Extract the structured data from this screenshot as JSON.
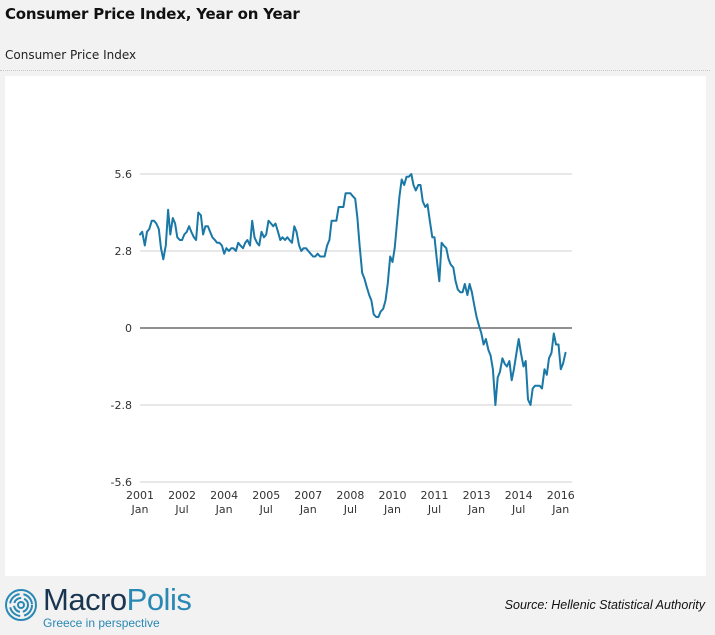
{
  "header": {
    "title": "Consumer Price Index, Year on Year",
    "subtitle": "Consumer Price Index"
  },
  "footer": {
    "brand_main": "Macro",
    "brand_accent": "Polis",
    "tagline": "Greece in perspective",
    "source": "Source: Hellenic Statistical Authority"
  },
  "colors": {
    "series": "#1a78a6",
    "gridline": "#d0d0d0",
    "zero_line": "#222222",
    "brand_dark": "#1a3550",
    "brand_accent": "#2a88b4"
  },
  "chart_data": {
    "type": "line",
    "title": "Consumer Price Index, Year on Year",
    "xlabel": "",
    "ylabel": "",
    "ylim": [
      -5.6,
      5.6
    ],
    "yticks": [
      5.6,
      2.8,
      0,
      -2.8,
      -5.6
    ],
    "ytick_labels": [
      "5.6",
      "2.8",
      "0",
      "-2.8",
      "-5.6"
    ],
    "xlim": [
      2001.0,
      2016.4
    ],
    "xticks": [
      {
        "x": 2001.0,
        "line1": "2001",
        "line2": "Jan"
      },
      {
        "x": 2002.5,
        "line1": "2002",
        "line2": "Jul"
      },
      {
        "x": 2004.0,
        "line1": "2004",
        "line2": "Jan"
      },
      {
        "x": 2005.5,
        "line1": "2005",
        "line2": "Jul"
      },
      {
        "x": 2007.0,
        "line1": "2007",
        "line2": "Jan"
      },
      {
        "x": 2008.5,
        "line1": "2008",
        "line2": "Jul"
      },
      {
        "x": 2010.0,
        "line1": "2010",
        "line2": "Jan"
      },
      {
        "x": 2011.5,
        "line1": "2011",
        "line2": "Jul"
      },
      {
        "x": 2013.0,
        "line1": "2013",
        "line2": "Jan"
      },
      {
        "x": 2014.5,
        "line1": "2014",
        "line2": "Jul"
      },
      {
        "x": 2016.0,
        "line1": "2016",
        "line2": "Jan"
      }
    ],
    "grid": true,
    "series": [
      {
        "name": "Consumer Price Index (YoY %)",
        "points": [
          [
            2001.0,
            3.4
          ],
          [
            2001.08,
            3.5
          ],
          [
            2001.17,
            3.0
          ],
          [
            2001.25,
            3.5
          ],
          [
            2001.33,
            3.6
          ],
          [
            2001.42,
            3.9
          ],
          [
            2001.5,
            3.9
          ],
          [
            2001.58,
            3.8
          ],
          [
            2001.67,
            3.6
          ],
          [
            2001.75,
            2.9
          ],
          [
            2001.83,
            2.5
          ],
          [
            2001.92,
            3.0
          ],
          [
            2002.0,
            4.3
          ],
          [
            2002.08,
            3.4
          ],
          [
            2002.17,
            4.0
          ],
          [
            2002.25,
            3.8
          ],
          [
            2002.33,
            3.3
          ],
          [
            2002.42,
            3.2
          ],
          [
            2002.5,
            3.2
          ],
          [
            2002.58,
            3.4
          ],
          [
            2002.67,
            3.5
          ],
          [
            2002.75,
            3.7
          ],
          [
            2002.83,
            3.5
          ],
          [
            2002.92,
            3.3
          ],
          [
            2003.0,
            3.2
          ],
          [
            2003.08,
            4.2
          ],
          [
            2003.17,
            4.1
          ],
          [
            2003.25,
            3.4
          ],
          [
            2003.33,
            3.7
          ],
          [
            2003.42,
            3.7
          ],
          [
            2003.5,
            3.5
          ],
          [
            2003.58,
            3.3
          ],
          [
            2003.67,
            3.2
          ],
          [
            2003.75,
            3.1
          ],
          [
            2003.83,
            3.1
          ],
          [
            2003.92,
            3.0
          ],
          [
            2004.0,
            2.7
          ],
          [
            2004.08,
            2.9
          ],
          [
            2004.17,
            2.8
          ],
          [
            2004.25,
            2.9
          ],
          [
            2004.33,
            2.9
          ],
          [
            2004.42,
            2.8
          ],
          [
            2004.5,
            3.1
          ],
          [
            2004.58,
            3.0
          ],
          [
            2004.67,
            2.9
          ],
          [
            2004.75,
            3.1
          ],
          [
            2004.83,
            3.2
          ],
          [
            2004.92,
            3.0
          ],
          [
            2005.0,
            3.9
          ],
          [
            2005.08,
            3.3
          ],
          [
            2005.17,
            3.1
          ],
          [
            2005.25,
            3.0
          ],
          [
            2005.33,
            3.5
          ],
          [
            2005.42,
            3.3
          ],
          [
            2005.5,
            3.4
          ],
          [
            2005.58,
            3.9
          ],
          [
            2005.67,
            3.8
          ],
          [
            2005.75,
            3.7
          ],
          [
            2005.83,
            3.8
          ],
          [
            2005.92,
            3.5
          ],
          [
            2006.0,
            3.2
          ],
          [
            2006.08,
            3.3
          ],
          [
            2006.17,
            3.2
          ],
          [
            2006.25,
            3.3
          ],
          [
            2006.33,
            3.2
          ],
          [
            2006.42,
            3.1
          ],
          [
            2006.5,
            3.7
          ],
          [
            2006.58,
            3.5
          ],
          [
            2006.67,
            3.0
          ],
          [
            2006.75,
            2.8
          ],
          [
            2006.83,
            2.9
          ],
          [
            2006.92,
            2.9
          ],
          [
            2007.0,
            2.8
          ],
          [
            2007.08,
            2.7
          ],
          [
            2007.17,
            2.6
          ],
          [
            2007.25,
            2.6
          ],
          [
            2007.33,
            2.7
          ],
          [
            2007.42,
            2.6
          ],
          [
            2007.5,
            2.6
          ],
          [
            2007.58,
            2.6
          ],
          [
            2007.67,
            3.0
          ],
          [
            2007.75,
            3.2
          ],
          [
            2007.83,
            3.9
          ],
          [
            2007.92,
            3.9
          ],
          [
            2008.0,
            3.9
          ],
          [
            2008.08,
            4.4
          ],
          [
            2008.17,
            4.4
          ],
          [
            2008.25,
            4.4
          ],
          [
            2008.33,
            4.9
          ],
          [
            2008.42,
            4.9
          ],
          [
            2008.5,
            4.9
          ],
          [
            2008.58,
            4.8
          ],
          [
            2008.67,
            4.7
          ],
          [
            2008.75,
            4.0
          ],
          [
            2008.83,
            3.0
          ],
          [
            2008.92,
            2.0
          ],
          [
            2009.0,
            1.8
          ],
          [
            2009.08,
            1.5
          ],
          [
            2009.17,
            1.2
          ],
          [
            2009.25,
            1.0
          ],
          [
            2009.33,
            0.5
          ],
          [
            2009.42,
            0.4
          ],
          [
            2009.5,
            0.4
          ],
          [
            2009.58,
            0.6
          ],
          [
            2009.67,
            0.7
          ],
          [
            2009.75,
            1.0
          ],
          [
            2009.83,
            1.6
          ],
          [
            2009.92,
            2.6
          ],
          [
            2010.0,
            2.4
          ],
          [
            2010.08,
            2.9
          ],
          [
            2010.17,
            3.9
          ],
          [
            2010.25,
            4.8
          ],
          [
            2010.33,
            5.4
          ],
          [
            2010.42,
            5.2
          ],
          [
            2010.5,
            5.5
          ],
          [
            2010.58,
            5.5
          ],
          [
            2010.67,
            5.6
          ],
          [
            2010.75,
            5.2
          ],
          [
            2010.83,
            5.0
          ],
          [
            2010.92,
            5.2
          ],
          [
            2011.0,
            5.2
          ],
          [
            2011.08,
            4.6
          ],
          [
            2011.17,
            4.4
          ],
          [
            2011.25,
            4.5
          ],
          [
            2011.33,
            3.9
          ],
          [
            2011.42,
            3.3
          ],
          [
            2011.5,
            3.3
          ],
          [
            2011.58,
            2.5
          ],
          [
            2011.67,
            1.7
          ],
          [
            2011.75,
            3.1
          ],
          [
            2011.83,
            3.0
          ],
          [
            2011.92,
            2.9
          ],
          [
            2012.0,
            2.5
          ],
          [
            2012.08,
            2.3
          ],
          [
            2012.17,
            2.2
          ],
          [
            2012.25,
            1.7
          ],
          [
            2012.33,
            1.4
          ],
          [
            2012.42,
            1.3
          ],
          [
            2012.5,
            1.3
          ],
          [
            2012.58,
            1.6
          ],
          [
            2012.67,
            1.2
          ],
          [
            2012.75,
            1.6
          ],
          [
            2012.83,
            1.3
          ],
          [
            2012.92,
            0.8
          ],
          [
            2013.0,
            0.4
          ],
          [
            2013.08,
            0.1
          ],
          [
            2013.17,
            -0.2
          ],
          [
            2013.25,
            -0.6
          ],
          [
            2013.33,
            -0.4
          ],
          [
            2013.42,
            -0.8
          ],
          [
            2013.5,
            -1.0
          ],
          [
            2013.58,
            -1.5
          ],
          [
            2013.67,
            -2.8
          ],
          [
            2013.75,
            -1.8
          ],
          [
            2013.83,
            -1.6
          ],
          [
            2013.92,
            -1.1
          ],
          [
            2014.0,
            -1.3
          ],
          [
            2014.08,
            -1.4
          ],
          [
            2014.17,
            -1.2
          ],
          [
            2014.25,
            -1.9
          ],
          [
            2014.33,
            -1.5
          ],
          [
            2014.42,
            -0.9
          ],
          [
            2014.5,
            -0.4
          ],
          [
            2014.58,
            -0.9
          ],
          [
            2014.67,
            -1.4
          ],
          [
            2014.75,
            -1.2
          ],
          [
            2014.83,
            -2.6
          ],
          [
            2014.92,
            -2.8
          ],
          [
            2015.0,
            -2.2
          ],
          [
            2015.08,
            -2.1
          ],
          [
            2015.17,
            -2.1
          ],
          [
            2015.25,
            -2.1
          ],
          [
            2015.33,
            -2.2
          ],
          [
            2015.42,
            -1.5
          ],
          [
            2015.5,
            -1.7
          ],
          [
            2015.58,
            -1.1
          ],
          [
            2015.67,
            -0.9
          ],
          [
            2015.75,
            -0.2
          ],
          [
            2015.83,
            -0.6
          ],
          [
            2015.92,
            -0.6
          ],
          [
            2016.0,
            -1.5
          ],
          [
            2016.08,
            -1.3
          ],
          [
            2016.17,
            -0.9
          ]
        ]
      }
    ]
  }
}
